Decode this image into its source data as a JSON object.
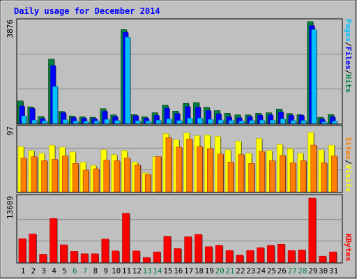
{
  "chart_data": [
    {
      "type": "bar",
      "title": "Daily usage for December 2014",
      "categories": [
        "1",
        "2",
        "3",
        "4",
        "5",
        "6",
        "7",
        "8",
        "9",
        "10",
        "11",
        "12",
        "13",
        "14",
        "15",
        "16",
        "17",
        "18",
        "19",
        "20",
        "21",
        "22",
        "23",
        "24",
        "25",
        "26",
        "27",
        "28",
        "29",
        "30",
        "31"
      ],
      "weekend_days": [
        "6",
        "7",
        "13",
        "14",
        "20",
        "21",
        "27",
        "28"
      ],
      "ymax_label": "3876",
      "ylim": [
        0,
        3876
      ],
      "right_labels": [
        "Pages",
        "Files",
        "Hits"
      ],
      "series": [
        {
          "name": "Hits",
          "color": "#008040",
          "values": [
            840,
            620,
            260,
            2400,
            450,
            280,
            250,
            230,
            550,
            320,
            3500,
            330,
            250,
            400,
            680,
            460,
            750,
            780,
            600,
            480,
            380,
            320,
            320,
            380,
            400,
            540,
            370,
            330,
            3800,
            230,
            330
          ]
        },
        {
          "name": "Files",
          "color": "#0000ff",
          "values": [
            650,
            560,
            180,
            2160,
            400,
            220,
            200,
            180,
            460,
            260,
            3400,
            290,
            200,
            300,
            570,
            370,
            630,
            610,
            480,
            360,
            250,
            210,
            260,
            310,
            320,
            430,
            300,
            300,
            3650,
            160,
            250
          ]
        },
        {
          "name": "Pages",
          "color": "#00c0ff",
          "values": [
            280,
            120,
            100,
            1380,
            140,
            90,
            80,
            90,
            150,
            110,
            3220,
            100,
            90,
            120,
            170,
            110,
            200,
            200,
            150,
            130,
            110,
            90,
            110,
            120,
            120,
            170,
            110,
            110,
            3500,
            60,
            90
          ]
        }
      ]
    },
    {
      "type": "bar",
      "ymax_label": "97",
      "ylim": [
        0,
        97
      ],
      "right_labels": [
        "Sites",
        "Visits"
      ],
      "series": [
        {
          "name": "Visits",
          "color": "#ffff00",
          "values": [
            67,
            61,
            57,
            69,
            66,
            59,
            44,
            39,
            62,
            55,
            61,
            44,
            28,
            52,
            86,
            77,
            87,
            83,
            84,
            82,
            62,
            75,
            57,
            79,
            61,
            70,
            64,
            57,
            88,
            62,
            69
          ]
        },
        {
          "name": "Sites",
          "color": "#ff8000",
          "values": [
            50,
            52,
            46,
            48,
            53,
            42,
            32,
            34,
            47,
            46,
            50,
            40,
            26,
            52,
            80,
            66,
            78,
            67,
            64,
            56,
            44,
            55,
            42,
            60,
            46,
            54,
            43,
            46,
            69,
            43,
            53
          ]
        }
      ]
    },
    {
      "type": "bar",
      "ymax_label": "13609",
      "ylim": [
        0,
        13609
      ],
      "right_labels": [
        "KBytes"
      ],
      "series": [
        {
          "name": "KBytes",
          "color": "#ff0000",
          "values": [
            5000,
            6000,
            1700,
            9300,
            3700,
            2300,
            1800,
            1800,
            4900,
            2400,
            10400,
            2400,
            1000,
            2200,
            5500,
            2900,
            5400,
            5900,
            3300,
            3600,
            2500,
            1500,
            2500,
            3100,
            3600,
            3800,
            2500,
            2600,
            13609,
            1300,
            2200
          ]
        }
      ]
    }
  ]
}
